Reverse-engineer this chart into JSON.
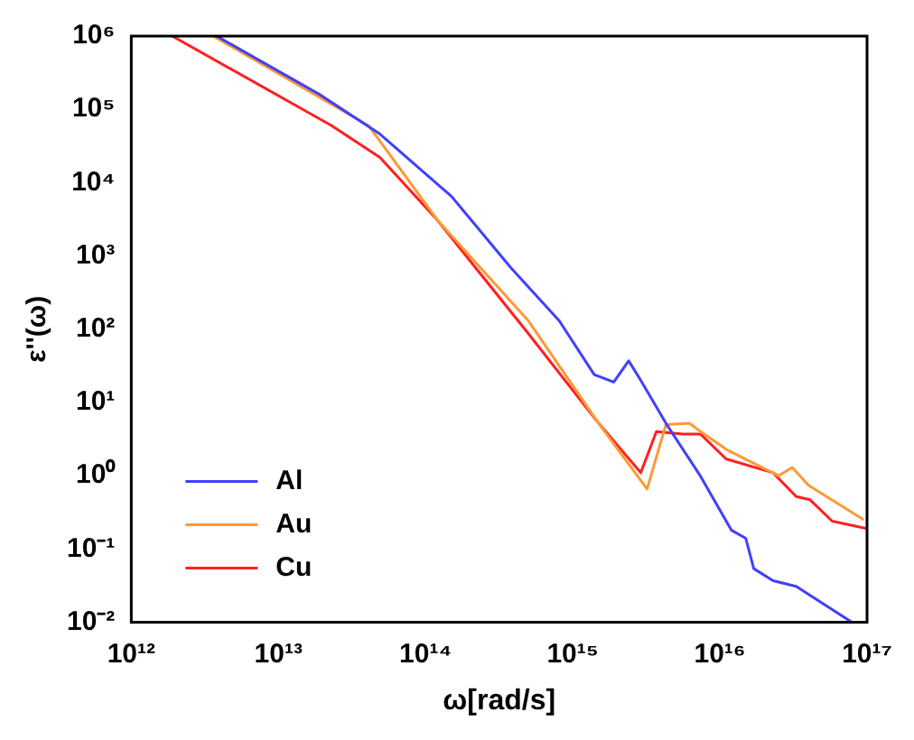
{
  "chart_data": {
    "type": "line",
    "xlabel": "ω[rad/s]",
    "ylabel": "ε''(ω)",
    "log": "xy",
    "grid": false,
    "legend": "bottom left",
    "marker": "none",
    "line_style": "solid",
    "xlim": [
      1000000000000.0,
      1e+17
    ],
    "xticks": [
      {
        "value": 1000000000000.0,
        "label": "10¹²"
      },
      {
        "value": 10000000000000.0,
        "label": "10¹³"
      },
      {
        "value": 100000000000000.0,
        "label": "10¹⁴"
      },
      {
        "value": 1000000000000000.0,
        "label": "10¹⁵"
      },
      {
        "value": 1e+16,
        "label": "10¹⁶"
      },
      {
        "value": 1e+17,
        "label": "10¹⁷"
      }
    ],
    "ylim": [
      0.01,
      1000000.0
    ],
    "yticks": [
      {
        "value": 0.01,
        "label": "10⁻²"
      },
      {
        "value": 0.1,
        "label": "10⁻¹"
      },
      {
        "value": 1,
        "label": "10⁰"
      },
      {
        "value": 10,
        "label": "10¹"
      },
      {
        "value": 100,
        "label": "10²"
      },
      {
        "value": 1000,
        "label": "10³"
      },
      {
        "value": 10000,
        "label": "10⁴"
      },
      {
        "value": 100000,
        "label": "10⁵"
      },
      {
        "value": 1000000,
        "label": "10⁶"
      }
    ],
    "series": [
      {
        "name": "Al",
        "color": "#4040ff",
        "x": [
          3800000000000.0,
          19000000000000.0,
          49000000000000.0,
          150000000000000.0,
          380000000000000.0,
          810000000000000.0,
          1400000000000000.0,
          1900000000000000.0,
          2400000000000000.0,
          2900000000000000.0,
          4300000000000000.0,
          7400000000000000.0,
          1.2e+16,
          1.5e+16,
          1.7e+16,
          2.3e+16,
          3.3e+16,
          7.9e+16
        ],
        "values": [
          1000000.0,
          160000.0,
          46000.0,
          6500,
          690,
          130,
          24,
          19,
          37,
          20,
          5.2,
          0.98,
          0.18,
          0.14,
          0.054,
          0.037,
          0.031,
          0.01
        ]
      },
      {
        "name": "Au",
        "color": "#ff9933",
        "x": [
          3600000000000.0,
          41000000000000.0,
          120000000000000.0,
          500000000000000.0,
          1500000000000000.0,
          3200000000000000.0,
          4300000000000000.0,
          6200000000000000.0,
          7400000000000000.0,
          1.1e+16,
          2.5e+16,
          3.1e+16,
          4e+16,
          9.5e+16
        ],
        "values": [
          1000000.0,
          60000.0,
          3100,
          130,
          5.2,
          0.66,
          5.0,
          5.2,
          4.0,
          2.3,
          1.0,
          1.3,
          0.74,
          0.25
        ]
      },
      {
        "name": "Cu",
        "color": "#ff2020",
        "x": [
          1900000000000.0,
          23000000000000.0,
          49000000000000.0,
          120000000000000.0,
          500000000000000.0,
          1500000000000000.0,
          2900000000000000.0,
          3700000000000000.0,
          5600000000000000.0,
          7400000000000000.0,
          1.1e+16,
          2.3e+16,
          3.3e+16,
          4.1e+16,
          5.8e+16,
          1e+17
        ],
        "values": [
          1000000.0,
          60000.0,
          22000.0,
          3100,
          87,
          5.2,
          1.1,
          4.0,
          3.7,
          3.7,
          1.7,
          1.1,
          0.52,
          0.47,
          0.24,
          0.19
        ]
      }
    ]
  }
}
